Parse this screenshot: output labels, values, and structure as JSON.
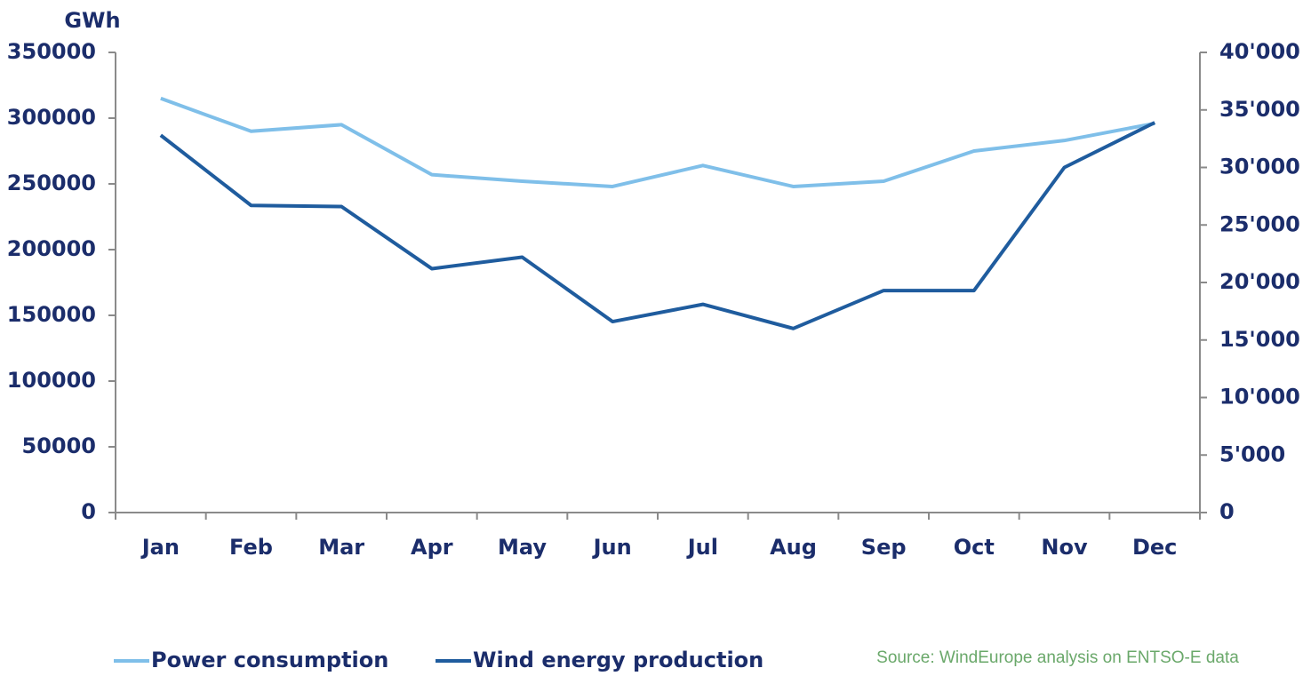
{
  "chart_data": {
    "type": "line",
    "y_label": "GWh",
    "categories": [
      "Jan",
      "Feb",
      "Mar",
      "Apr",
      "May",
      "Jun",
      "Jul",
      "Aug",
      "Sep",
      "Oct",
      "Nov",
      "Dec"
    ],
    "series": [
      {
        "name": "Power consumption",
        "color": "#7fbfe9",
        "values": [
          315000,
          290000,
          295000,
          257000,
          252000,
          248000,
          264000,
          248000,
          252000,
          275000,
          283000,
          296000
        ]
      },
      {
        "name": "Wind energy production",
        "color": "#1f5c9e",
        "axis": "y2",
        "values": [
          32800,
          26700,
          26600,
          21200,
          22200,
          16600,
          18100,
          16000,
          19300,
          19300,
          30000,
          33900
        ]
      }
    ],
    "ylim": [
      0,
      350000
    ],
    "yticks": [
      0,
      50000,
      100000,
      150000,
      200000,
      250000,
      300000,
      350000
    ],
    "y2lim": [
      0,
      40000
    ],
    "y2ticks": [
      0,
      {
        "value": 5000,
        "label": "5'000"
      },
      {
        "value": 10000,
        "label": "10'000"
      },
      {
        "value": 15000,
        "label": "15'000"
      },
      {
        "value": 20000,
        "label": "20'000"
      },
      {
        "value": 25000,
        "label": "25'000"
      },
      {
        "value": 30000,
        "label": "30'000"
      },
      {
        "value": 35000,
        "label": "35'000"
      },
      {
        "value": 40000,
        "label": "40'000"
      }
    ],
    "source": "Source: WindEurope analysis on ENTSO-E data",
    "grid": false
  }
}
